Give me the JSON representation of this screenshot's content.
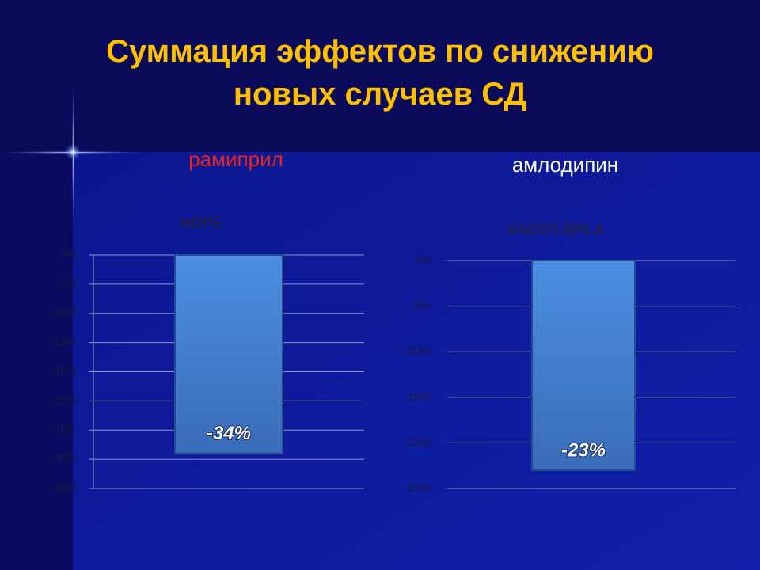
{
  "title": "Суммация эффектов по снижению новых случаев СД",
  "chart_data": [
    {
      "type": "bar",
      "subtitle": "рамиприл",
      "title": "HOPE",
      "categories": [
        null
      ],
      "values": [
        -34
      ],
      "value_labels": [
        "-34%"
      ],
      "ylim": [
        -40,
        0
      ],
      "yticks": [
        {
          "value": 0,
          "label": "0%"
        },
        {
          "value": -5,
          "label": "-5%"
        },
        {
          "value": -10,
          "label": "-10%"
        },
        {
          "value": -15,
          "label": "-15%"
        },
        {
          "value": -20,
          "label": "-20%"
        },
        {
          "value": -25,
          "label": "-25%"
        },
        {
          "value": -30,
          "label": "-30%"
        },
        {
          "value": -35,
          "label": "-35%"
        },
        {
          "value": -40,
          "label": "-40%"
        }
      ],
      "grid": true
    },
    {
      "type": "bar",
      "subtitle": "амлодипин",
      "title": "ASCOT-BPLA",
      "categories": [
        null
      ],
      "values": [
        -23
      ],
      "value_labels": [
        "-23%"
      ],
      "ylim": [
        -25,
        0
      ],
      "yticks": [
        {
          "value": 0,
          "label": "0%"
        },
        {
          "value": -5,
          "label": "-5%"
        },
        {
          "value": -10,
          "label": "-10%"
        },
        {
          "value": -15,
          "label": "-15%"
        },
        {
          "value": -20,
          "label": "-20%"
        },
        {
          "value": -25,
          "label": "-25%"
        }
      ],
      "grid": true
    }
  ]
}
